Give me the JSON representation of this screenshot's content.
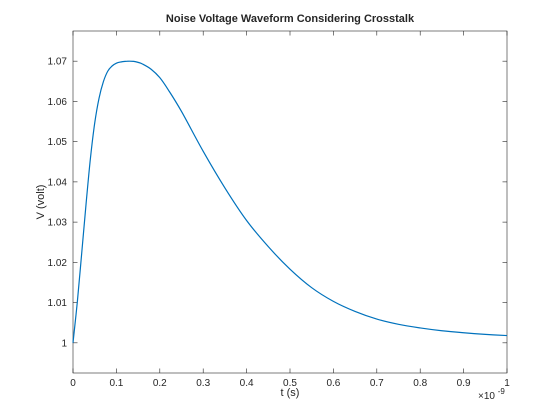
{
  "chart_data": {
    "type": "line",
    "title": "Noise Voltage Waveform Considering Crosstalk",
    "xlabel": "t (s)",
    "ylabel": "V (volt)",
    "x_exponent_label": "×10",
    "x_exponent_power": "-9",
    "xlim": [
      0,
      1
    ],
    "ylim": [
      0.9925,
      1.0775
    ],
    "x_ticks": [
      "0",
      "0.1",
      "0.2",
      "0.3",
      "0.4",
      "0.5",
      "0.6",
      "0.7",
      "0.8",
      "0.9",
      "1"
    ],
    "y_ticks": [
      "1",
      "1.01",
      "1.02",
      "1.03",
      "1.04",
      "1.05",
      "1.06",
      "1.07"
    ],
    "grid": false,
    "line_color": "#0072BD",
    "series": [
      {
        "x": [
          0,
          0.01,
          0.02,
          0.03,
          0.04,
          0.05,
          0.06,
          0.07,
          0.08,
          0.09,
          0.1,
          0.11,
          0.12,
          0.13,
          0.14,
          0.15,
          0.16,
          0.18,
          0.2,
          0.22,
          0.25,
          0.3,
          0.35,
          0.4,
          0.45,
          0.5,
          0.55,
          0.6,
          0.65,
          0.7,
          0.75,
          0.8,
          0.85,
          0.9,
          0.95,
          1.0
        ],
        "y": [
          1.0,
          1.0102,
          1.0222,
          1.0344,
          1.0457,
          1.0546,
          1.0608,
          1.0649,
          1.0675,
          1.0688,
          1.0695,
          1.0698,
          1.06995,
          1.07,
          1.06995,
          1.0697,
          1.0693,
          1.068,
          1.0659,
          1.0628,
          1.0575,
          1.0476,
          1.0385,
          1.0304,
          1.0239,
          1.0183,
          1.0137,
          1.0103,
          1.0078,
          1.0059,
          1.0046,
          1.0037,
          1.003,
          1.0025,
          1.0021,
          1.0018
        ]
      }
    ]
  }
}
